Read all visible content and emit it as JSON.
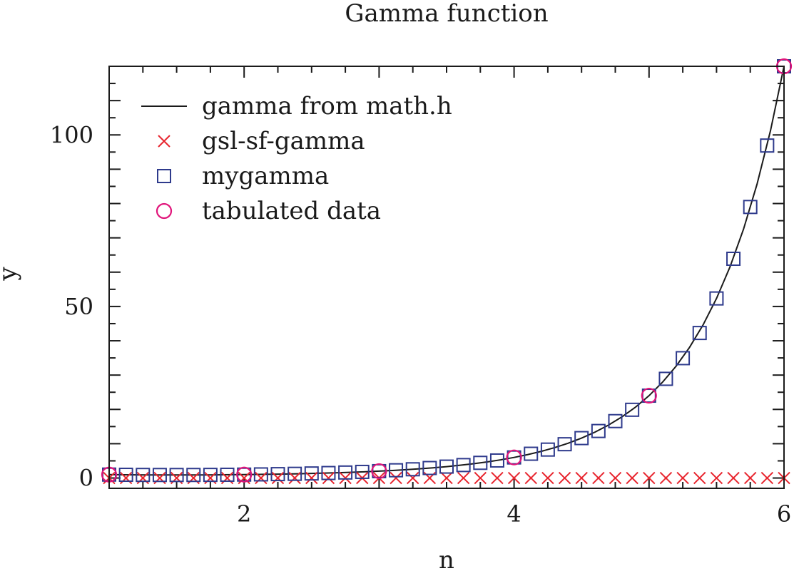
{
  "chart_data": {
    "type": "line",
    "title": "Gamma function",
    "xlabel": "n",
    "ylabel": "y",
    "xlim": [
      1,
      6
    ],
    "ylim": [
      -3,
      120
    ],
    "xticks": [
      2,
      4,
      6
    ],
    "yticks": [
      0,
      50,
      100
    ],
    "grid": false,
    "legend_position": "top-left",
    "series": [
      {
        "name": "gamma from math.h",
        "kind": "line",
        "color": "#1a1a1a",
        "x": [
          1.0,
          1.1,
          1.2,
          1.3,
          1.4,
          1.5,
          1.6,
          1.7,
          1.8,
          1.9,
          2.0,
          2.1,
          2.2,
          2.3,
          2.4,
          2.5,
          2.6,
          2.7,
          2.8,
          2.9,
          3.0,
          3.1,
          3.2,
          3.3,
          3.4,
          3.5,
          3.6,
          3.7,
          3.8,
          3.9,
          4.0,
          4.1,
          4.2,
          4.3,
          4.4,
          4.5,
          4.6,
          4.7,
          4.8,
          4.9,
          5.0,
          5.1,
          5.2,
          5.3,
          5.4,
          5.5,
          5.6,
          5.7,
          5.8,
          5.9,
          6.0
        ],
        "y": [
          1.0,
          0.951,
          0.918,
          0.897,
          0.887,
          0.886,
          0.894,
          0.909,
          0.931,
          0.962,
          1.0,
          1.047,
          1.102,
          1.167,
          1.242,
          1.329,
          1.43,
          1.545,
          1.676,
          1.827,
          2.0,
          2.198,
          2.424,
          2.683,
          2.981,
          3.323,
          3.717,
          4.171,
          4.694,
          5.299,
          6.0,
          6.813,
          7.757,
          8.855,
          10.136,
          11.632,
          13.381,
          15.431,
          17.837,
          20.667,
          24.0,
          27.933,
          32.578,
          38.078,
          44.599,
          52.343,
          61.553,
          72.527,
          85.621,
          101.27,
          120.0
        ]
      },
      {
        "name": "gsl-sf-gamma",
        "kind": "marker",
        "marker": "x",
        "color": "#e8252e",
        "x": [
          1.0,
          1.125,
          1.25,
          1.375,
          1.5,
          1.625,
          1.75,
          1.875,
          2.0,
          2.125,
          2.25,
          2.375,
          2.5,
          2.625,
          2.75,
          2.875,
          3.0,
          3.125,
          3.25,
          3.375,
          3.5,
          3.625,
          3.75,
          3.875,
          4.0,
          4.125,
          4.25,
          4.375,
          4.5,
          4.625,
          4.75,
          4.875,
          5.0,
          5.125,
          5.25,
          5.375,
          5.5,
          5.625,
          5.75,
          5.875,
          6.0
        ],
        "y": [
          0,
          0,
          0,
          0,
          0,
          0,
          0,
          0,
          0,
          0,
          0,
          0,
          0,
          0,
          0,
          0,
          0,
          0,
          0,
          0,
          0,
          0,
          0,
          0,
          0,
          0,
          0,
          0,
          0,
          0,
          0,
          0,
          0,
          0,
          0,
          0,
          0,
          0,
          0,
          0,
          0
        ]
      },
      {
        "name": "mygamma",
        "kind": "marker",
        "marker": "square",
        "color": "#2e3a8c",
        "x": [
          1.0,
          1.125,
          1.25,
          1.375,
          1.5,
          1.625,
          1.75,
          1.875,
          2.0,
          2.125,
          2.25,
          2.375,
          2.5,
          2.625,
          2.75,
          2.875,
          3.0,
          3.125,
          3.25,
          3.375,
          3.5,
          3.625,
          3.75,
          3.875,
          4.0,
          4.125,
          4.25,
          4.375,
          4.5,
          4.625,
          4.75,
          4.875,
          5.0,
          5.125,
          5.25,
          5.375,
          5.5,
          5.625,
          5.75,
          5.875,
          6.0
        ],
        "y": [
          1.0,
          0.942,
          0.906,
          0.889,
          0.886,
          0.896,
          0.919,
          0.953,
          1.0,
          1.059,
          1.133,
          1.222,
          1.329,
          1.456,
          1.608,
          1.79,
          2.0,
          2.262,
          2.549,
          2.916,
          3.323,
          3.778,
          4.423,
          5.109,
          6.0,
          7.07,
          8.285,
          9.851,
          11.632,
          13.703,
          16.586,
          19.89,
          24.0,
          28.91,
          34.93,
          42.27,
          52.34,
          63.9,
          79.0,
          96.9,
          120.0
        ]
      },
      {
        "name": "tabulated data",
        "kind": "marker",
        "marker": "circle",
        "color": "#e0147a",
        "x": [
          1,
          2,
          3,
          4,
          5,
          6
        ],
        "y": [
          1,
          1,
          2,
          6,
          24,
          120
        ]
      }
    ]
  }
}
